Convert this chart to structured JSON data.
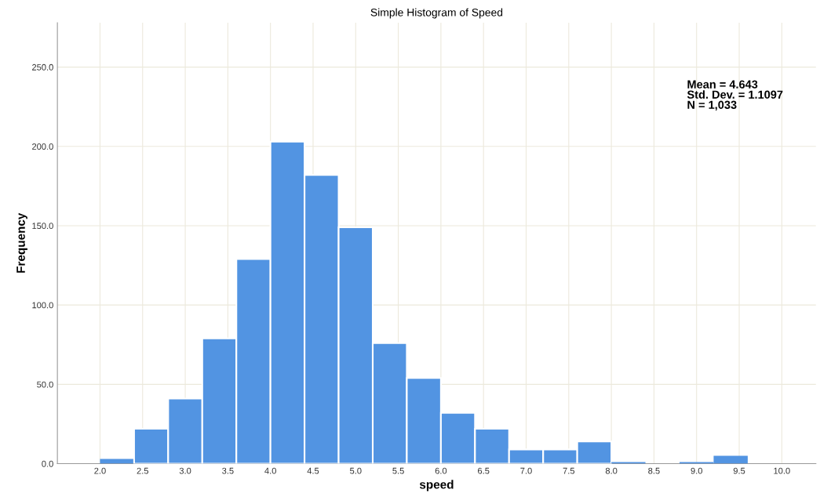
{
  "chart_data": {
    "type": "histogram",
    "title": "Simple Histogram of Speed",
    "xlabel": "speed",
    "ylabel": "Frequency",
    "bins": [
      2.0,
      2.4,
      2.8,
      3.2,
      3.6,
      4.0,
      4.4,
      4.8,
      5.2,
      5.6,
      6.0,
      6.4,
      6.8,
      7.2,
      7.6,
      8.0,
      8.4,
      8.8,
      9.2,
      9.6,
      10.0
    ],
    "values": [
      3,
      22,
      41,
      79,
      129,
      203,
      182,
      149,
      76,
      54,
      32,
      22,
      9,
      9,
      14,
      1,
      0,
      1,
      5,
      0
    ],
    "color": "#5294e2",
    "xlim": [
      1.5,
      10.4
    ],
    "ylim": [
      0,
      278
    ],
    "xticks": [
      {
        "value": 2.0,
        "label": "2.0"
      },
      2.5,
      {
        "value": 3.0,
        "label": "3.0"
      },
      3.5,
      {
        "value": 4.0,
        "label": "4.0"
      },
      4.5,
      {
        "value": 5.0,
        "label": "5.0"
      },
      5.5,
      {
        "value": 6.0,
        "label": "6.0"
      },
      6.5,
      {
        "value": 7.0,
        "label": "7.0"
      },
      7.5,
      {
        "value": 8.0,
        "label": "8.0"
      },
      8.5,
      {
        "value": 9.0,
        "label": "9.0"
      },
      9.5,
      {
        "value": 10.0,
        "label": "10.0"
      }
    ],
    "yticks": [
      {
        "value": 0,
        "label": "0.0"
      },
      {
        "value": 50,
        "label": "50.0"
      },
      {
        "value": 100,
        "label": "100.0"
      },
      {
        "value": 150,
        "label": "150.0"
      },
      {
        "value": 200,
        "label": "200.0"
      },
      {
        "value": 250,
        "label": "250.0"
      }
    ],
    "grid": true,
    "annotations": [
      "Mean = 4.643\nStd. Dev. = 1.1097\nN = 1,033"
    ]
  }
}
